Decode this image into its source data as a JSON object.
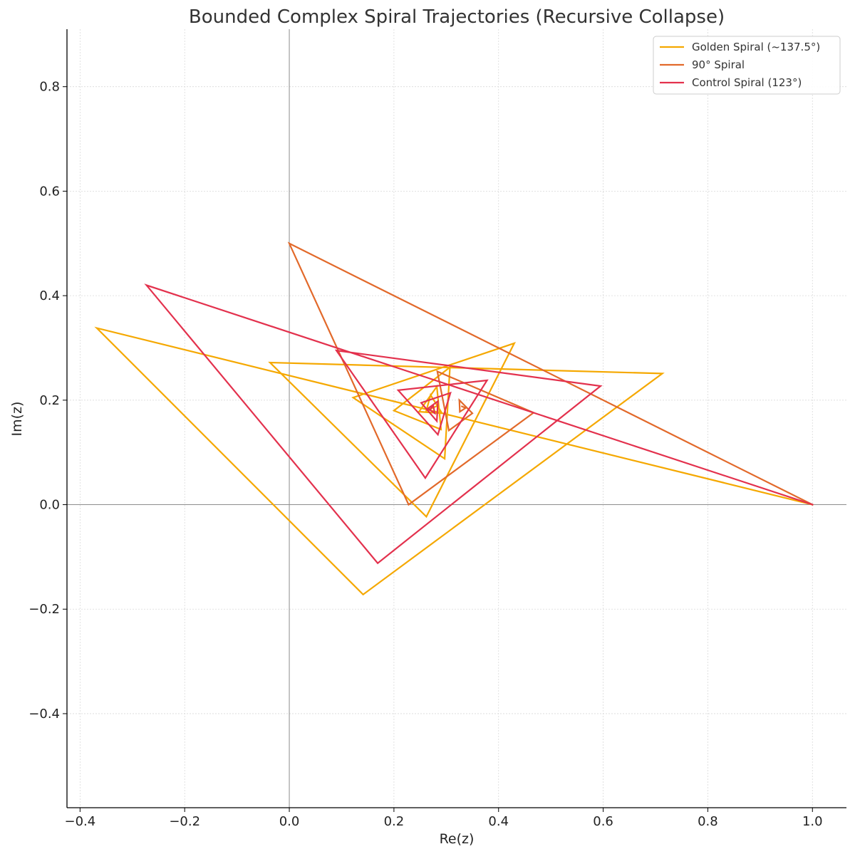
{
  "chart_data": {
    "type": "line",
    "title": "Bounded Complex Spiral Trajectories (Recursive Collapse)",
    "xlabel": "Re(z)",
    "ylabel": "Im(z)",
    "xlim": [
      -0.425,
      1.065
    ],
    "ylim": [
      -0.58,
      0.91
    ],
    "xticks": [
      -0.4,
      -0.2,
      0.0,
      0.2,
      0.4,
      0.6,
      0.8,
      1.0
    ],
    "yticks": [
      -0.4,
      -0.2,
      0.0,
      0.2,
      0.4,
      0.6,
      0.8
    ],
    "xtick_labels": [
      "−0.4",
      "−0.2",
      "0.0",
      "0.2",
      "0.4",
      "0.6",
      "0.8",
      "1.0"
    ],
    "ytick_labels": [
      "−0.4",
      "−0.2",
      "0.0",
      "0.2",
      "0.4",
      "0.6",
      "0.8"
    ],
    "grid": true,
    "zero_lines": true,
    "legend_position": "top-right",
    "series": [
      {
        "name": "Golden Spiral (~137.5°)",
        "color": "#f5a800",
        "points": [
          [
            1.0,
            0.0
          ],
          [
            -0.368,
            0.338
          ],
          [
            0.141,
            -0.172
          ],
          [
            0.713,
            0.251
          ],
          [
            -0.037,
            0.272
          ],
          [
            0.262,
            -0.023
          ],
          [
            0.43,
            0.309
          ],
          [
            0.122,
            0.205
          ],
          [
            0.297,
            0.088
          ],
          [
            0.307,
            0.263
          ],
          [
            0.2,
            0.18
          ],
          [
            0.29,
            0.144
          ],
          [
            0.282,
            0.226
          ],
          [
            0.248,
            0.178
          ],
          [
            0.292,
            0.175
          ],
          [
            0.27,
            0.21
          ],
          [
            0.262,
            0.18
          ],
          [
            0.285,
            0.19
          ]
        ]
      },
      {
        "name": "90° Spiral",
        "color": "#e2692a",
        "points": [
          [
            1.0,
            0.0
          ],
          [
            0.0,
            0.5
          ],
          [
            0.228,
            0.0
          ],
          [
            0.467,
            0.176
          ],
          [
            0.283,
            0.255
          ],
          [
            0.305,
            0.142
          ],
          [
            0.35,
            0.175
          ],
          [
            0.325,
            0.2
          ],
          [
            0.326,
            0.178
          ],
          [
            0.337,
            0.185
          ],
          [
            0.33,
            0.188
          ]
        ]
      },
      {
        "name": "Control Spiral (123°)",
        "color": "#e3314d",
        "points": [
          [
            1.0,
            0.0
          ],
          [
            -0.273,
            0.42
          ],
          [
            0.169,
            -0.112
          ],
          [
            0.595,
            0.227
          ],
          [
            0.09,
            0.295
          ],
          [
            0.26,
            0.051
          ],
          [
            0.378,
            0.238
          ],
          [
            0.208,
            0.219
          ],
          [
            0.284,
            0.134
          ],
          [
            0.308,
            0.214
          ],
          [
            0.252,
            0.195
          ],
          [
            0.282,
            0.16
          ],
          [
            0.284,
            0.198
          ],
          [
            0.265,
            0.184
          ],
          [
            0.278,
            0.175
          ],
          [
            0.275,
            0.19
          ],
          [
            0.27,
            0.183
          ]
        ]
      }
    ]
  }
}
